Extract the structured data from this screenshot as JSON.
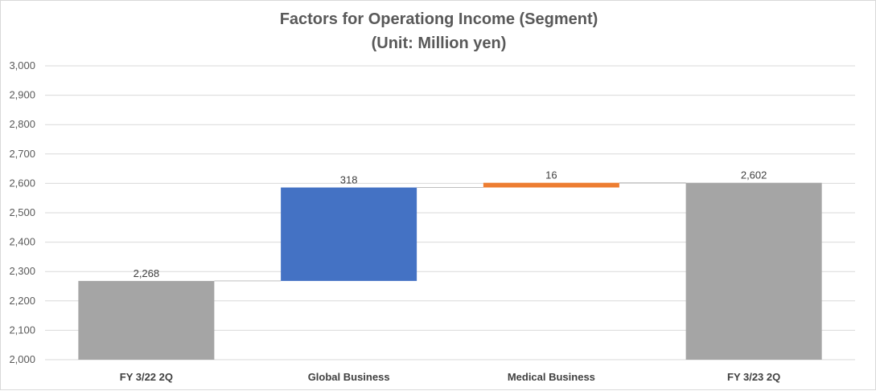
{
  "chart_data": {
    "type": "bar",
    "subtype": "waterfall",
    "title": "Factors for Operationg Income (Segment)",
    "subtitle": "(Unit: Million yen)",
    "categories": [
      "FY 3/22 2Q",
      "Global Business",
      "Medical Business",
      "FY 3/23 2Q"
    ],
    "values": [
      2268,
      318,
      16,
      2602
    ],
    "bar_kind": [
      "total",
      "increase",
      "increase",
      "total"
    ],
    "data_labels": [
      "2,268",
      "318",
      "16",
      "2,602"
    ],
    "ylim": [
      2000,
      3000
    ],
    "yticks": [
      2000,
      2100,
      2200,
      2300,
      2400,
      2500,
      2600,
      2700,
      2800,
      2900,
      3000
    ],
    "ytick_labels": [
      "2,000",
      "2,100",
      "2,200",
      "2,300",
      "2,400",
      "2,500",
      "2,600",
      "2,700",
      "2,800",
      "2,900",
      "3,000"
    ],
    "grid": true,
    "legend": "none",
    "colors": {
      "total": "#a5a5a5",
      "increase_global": "#4472c4",
      "increase_medical": "#ed7d31",
      "gridline": "#d9d9d9",
      "connector": "#bfbfbf"
    }
  }
}
